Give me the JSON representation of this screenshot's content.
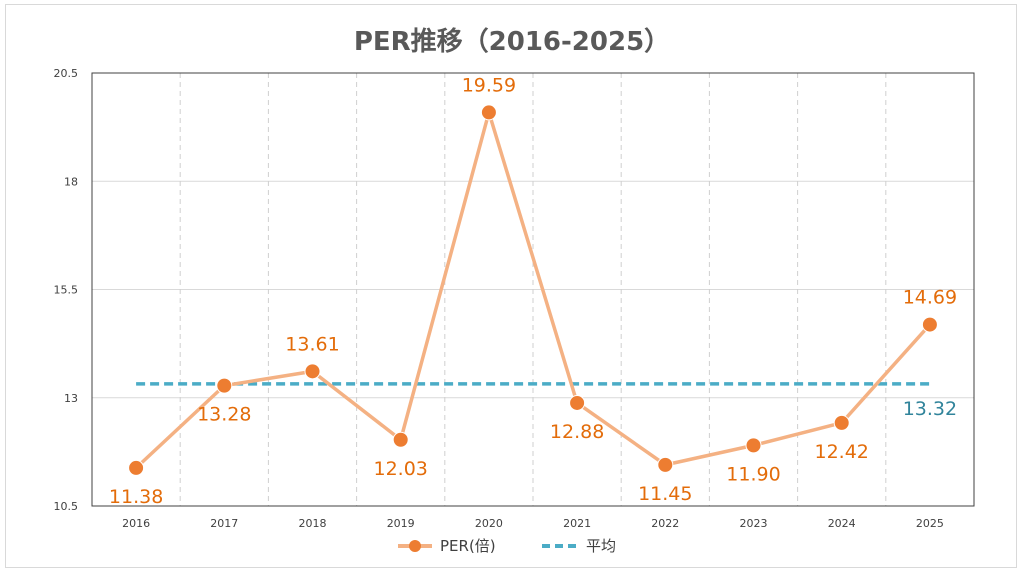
{
  "chart_data": {
    "type": "line",
    "title": "PER推移（2016-2025）",
    "categories": [
      "2016",
      "2017",
      "2018",
      "2019",
      "2020",
      "2021",
      "2022",
      "2023",
      "2024",
      "2025"
    ],
    "series": [
      {
        "name": "PER(倍)",
        "values": [
          11.38,
          13.28,
          13.61,
          12.03,
          19.59,
          12.88,
          11.45,
          11.9,
          12.42,
          14.69
        ],
        "color": "#F4B183",
        "marker_color": "#ED7D31",
        "label_color": "#E36C0A",
        "labels": [
          "11.38",
          "13.28",
          "13.61",
          "12.03",
          "19.59",
          "12.88",
          "11.45",
          "11.90",
          "12.42",
          "14.69"
        ]
      },
      {
        "name": "平均",
        "value": 13.32,
        "label": "13.32",
        "color": "#4BACC6",
        "label_color": "#31849B",
        "style": "dashed"
      }
    ],
    "y_ticks": [
      "10.5",
      "13",
      "15.5",
      "18",
      "20.5"
    ],
    "ylim": [
      10.5,
      20.5
    ],
    "grid": {
      "horizontal": true,
      "vertical_dashed": true
    },
    "legend": "bottom"
  }
}
